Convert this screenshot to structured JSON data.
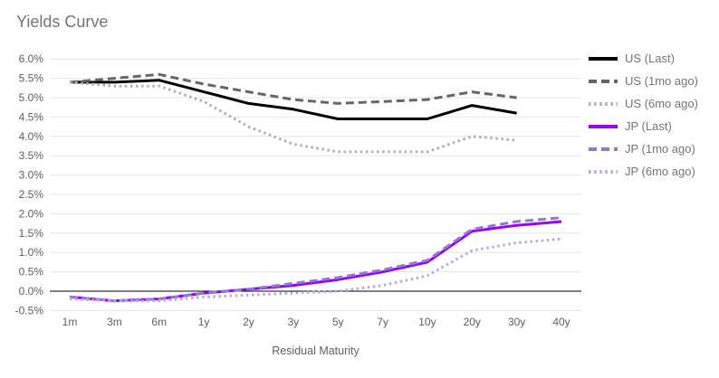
{
  "title": "Yields Curve",
  "colors": {
    "background": "#ffffff",
    "title_text": "#757575",
    "tick_text": "#616161",
    "axis_title_text": "#616161",
    "legend_text": "#757575",
    "gridline": "#e6e6e6",
    "zero_line": "#000000"
  },
  "chart_data": {
    "type": "line",
    "title": "Yields Curve",
    "xlabel": "Residual Maturity",
    "ylabel": "",
    "categories": [
      "1m",
      "3m",
      "6m",
      "1y",
      "2y",
      "3y",
      "5y",
      "7y",
      "10y",
      "20y",
      "30y",
      "40y"
    ],
    "y_ticks": [
      6.0,
      5.5,
      5.0,
      4.5,
      4.0,
      3.5,
      3.0,
      2.5,
      2.0,
      1.5,
      1.0,
      0.5,
      0.0,
      -0.5
    ],
    "y_tick_format": "percent_1dp",
    "ylim": [
      -0.5,
      6.0
    ],
    "grid": true,
    "legend_position": "right",
    "series": [
      {
        "name": "US (Last)",
        "color": "#000000",
        "style": "solid",
        "values": [
          5.4,
          5.4,
          5.45,
          5.15,
          4.85,
          4.7,
          4.45,
          4.45,
          4.45,
          4.8,
          4.6,
          null
        ]
      },
      {
        "name": "US (1mo ago)",
        "color": "#666666",
        "style": "dashed",
        "values": [
          5.4,
          5.5,
          5.6,
          5.35,
          5.15,
          4.95,
          4.85,
          4.9,
          4.95,
          5.15,
          5.0,
          null
        ]
      },
      {
        "name": "US (6mo ago)",
        "color": "#b0b0b0",
        "style": "dotted",
        "values": [
          5.4,
          5.3,
          5.3,
          4.9,
          4.25,
          3.8,
          3.6,
          3.6,
          3.6,
          4.0,
          3.9,
          null
        ]
      },
      {
        "name": "JP (Last)",
        "color": "#9900ff",
        "style": "solid",
        "values": [
          -0.15,
          -0.25,
          -0.2,
          -0.05,
          0.05,
          0.15,
          0.3,
          0.5,
          0.75,
          1.55,
          1.7,
          1.8
        ]
      },
      {
        "name": "JP (1mo ago)",
        "color": "#8d7cc6",
        "style": "dashed",
        "values": [
          -0.15,
          -0.25,
          -0.2,
          -0.05,
          0.05,
          0.2,
          0.35,
          0.55,
          0.8,
          1.6,
          1.8,
          1.9
        ]
      },
      {
        "name": "JP (6mo ago)",
        "color": "#b7aadd",
        "style": "dotted",
        "values": [
          -0.2,
          -0.25,
          -0.25,
          -0.15,
          -0.1,
          -0.05,
          0.0,
          0.15,
          0.4,
          1.05,
          1.25,
          1.35
        ]
      }
    ]
  }
}
